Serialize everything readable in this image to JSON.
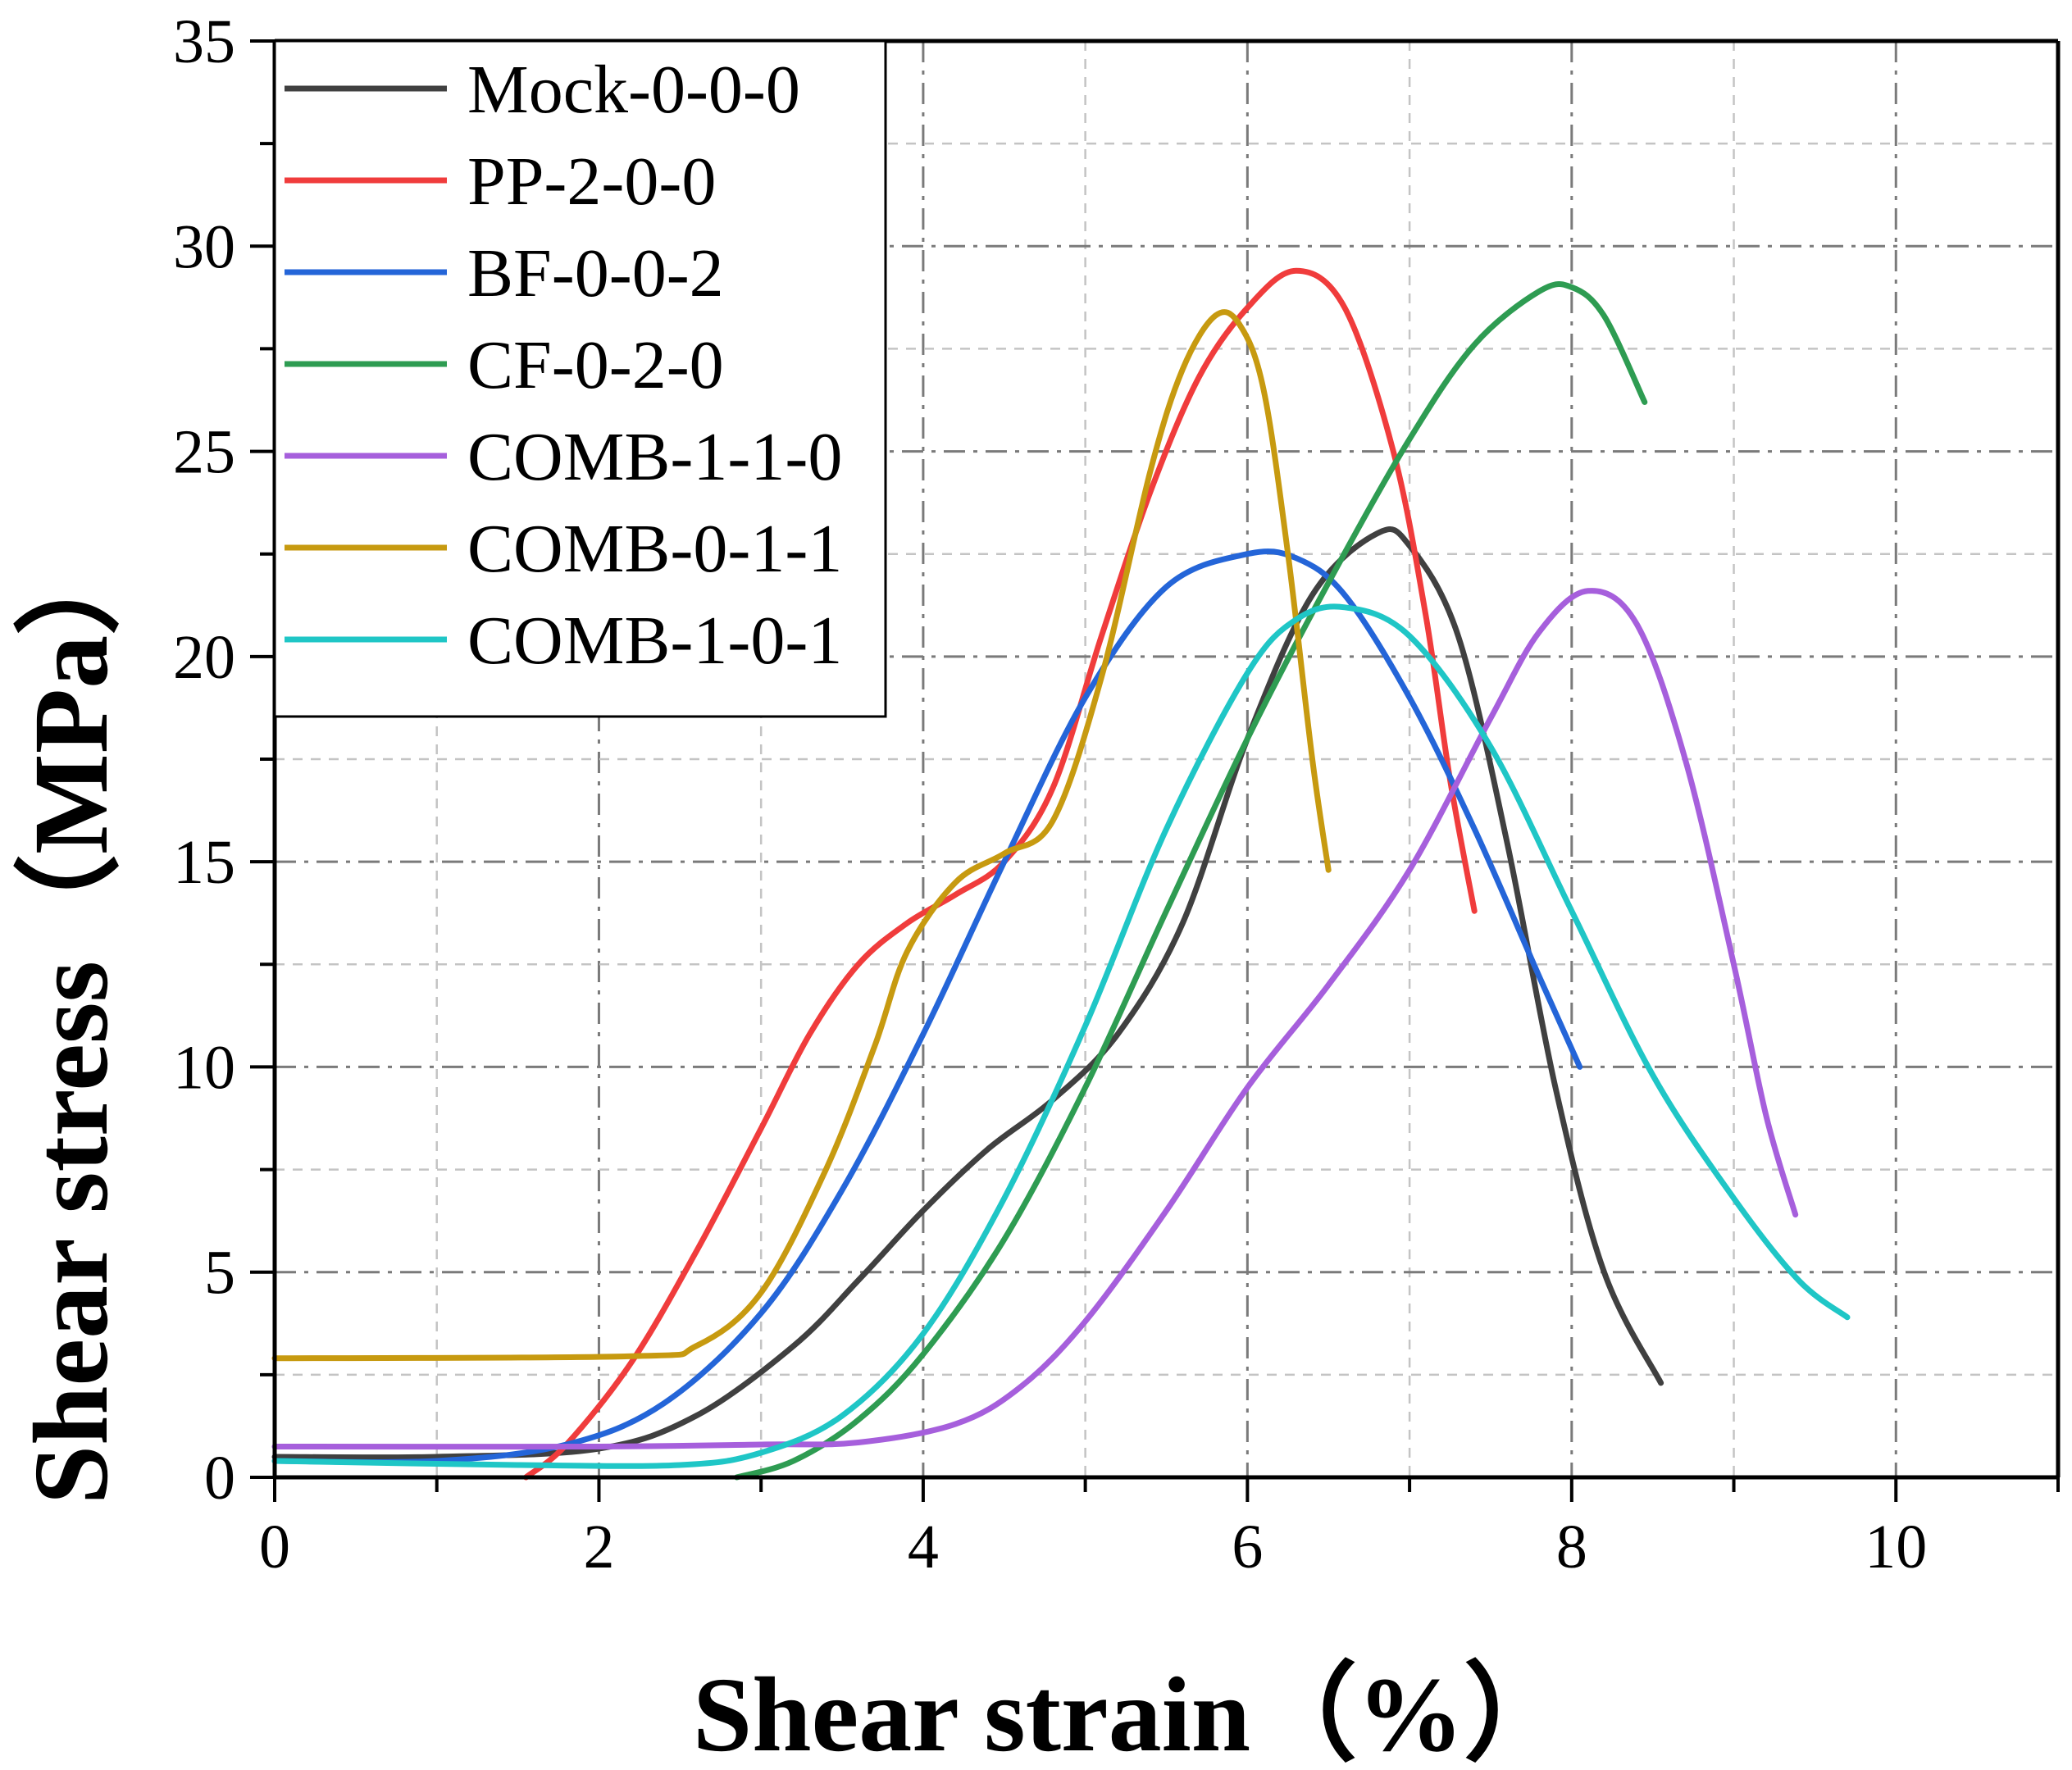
{
  "chart_data": {
    "type": "line",
    "title": "",
    "xlabel": "Shear strain（%）",
    "ylabel": "Shear stress（MPa）",
    "xlim": [
      0,
      11
    ],
    "ylim": [
      0,
      35
    ],
    "xticks": [
      0,
      2,
      4,
      6,
      8,
      10
    ],
    "yticks": [
      0,
      5,
      10,
      15,
      20,
      25,
      30,
      35
    ],
    "grid": true,
    "legend_position": "top-left",
    "series": [
      {
        "name": "Mock-0-0-0",
        "color": "#404040",
        "x": [
          0,
          1.0,
          2.0,
          2.6,
          3.2,
          3.6,
          4.0,
          4.4,
          4.8,
          5.2,
          5.6,
          6.0,
          6.4,
          6.8,
          7.0,
          7.3,
          7.6,
          7.9,
          8.2,
          8.55
        ],
        "y": [
          0.5,
          0.5,
          0.7,
          1.5,
          3.2,
          4.8,
          6.5,
          8.0,
          9.2,
          10.8,
          13.5,
          18.0,
          21.5,
          23.0,
          22.7,
          20.5,
          15.5,
          9.5,
          5.0,
          2.3
        ]
      },
      {
        "name": "PP-2-0-0",
        "color": "#f03c3c",
        "x": [
          1.55,
          1.8,
          2.2,
          2.6,
          3.0,
          3.3,
          3.6,
          3.9,
          4.2,
          4.5,
          4.8,
          5.1,
          5.4,
          5.7,
          6.0,
          6.3,
          6.6,
          6.9,
          7.1,
          7.25,
          7.4
        ],
        "y": [
          0,
          0.8,
          2.8,
          5.5,
          8.5,
          10.8,
          12.5,
          13.5,
          14.2,
          15.0,
          16.8,
          20.5,
          24.0,
          26.8,
          28.5,
          29.4,
          28.5,
          25.0,
          21.0,
          17.0,
          13.8
        ]
      },
      {
        "name": "BF-0-0-2",
        "color": "#2465d8",
        "x": [
          0,
          1.0,
          1.8,
          2.4,
          3.0,
          3.5,
          4.0,
          4.5,
          5.0,
          5.5,
          6.0,
          6.3,
          6.6,
          7.0,
          7.4,
          7.8,
          8.05
        ],
        "y": [
          0.4,
          0.4,
          0.8,
          1.8,
          4.0,
          7.0,
          10.8,
          15.0,
          19.0,
          21.7,
          22.5,
          22.4,
          21.5,
          19.0,
          15.8,
          12.2,
          10.0
        ]
      },
      {
        "name": "CF-0-2-0",
        "color": "#2e9c52",
        "x": [
          2.85,
          3.2,
          3.6,
          4.0,
          4.5,
          5.0,
          5.5,
          6.0,
          6.5,
          7.0,
          7.4,
          7.8,
          8.0,
          8.2,
          8.45
        ],
        "y": [
          0,
          0.4,
          1.4,
          3.0,
          5.8,
          9.5,
          13.8,
          18.0,
          21.8,
          25.3,
          27.6,
          28.9,
          29.0,
          28.3,
          26.2
        ]
      },
      {
        "name": "COMB-1-1-0",
        "color": "#a65fdc",
        "x": [
          0,
          2.0,
          3.0,
          3.6,
          4.2,
          4.6,
          5.0,
          5.5,
          6.0,
          6.5,
          7.0,
          7.5,
          7.8,
          8.1,
          8.4,
          8.7,
          9.0,
          9.2,
          9.38
        ],
        "y": [
          0.75,
          0.75,
          0.8,
          0.85,
          1.3,
          2.2,
          3.8,
          6.5,
          9.5,
          12.0,
          14.8,
          18.5,
          20.6,
          21.6,
          20.8,
          17.5,
          12.5,
          8.8,
          6.4
        ]
      },
      {
        "name": "COMB-0-1-1",
        "color": "#c79a10",
        "x": [
          0,
          2.2,
          2.6,
          3.0,
          3.4,
          3.7,
          3.9,
          4.2,
          4.5,
          4.8,
          5.1,
          5.4,
          5.6,
          5.8,
          5.95,
          6.1,
          6.25,
          6.4,
          6.5
        ],
        "y": [
          2.9,
          2.95,
          3.2,
          4.5,
          7.5,
          10.5,
          12.8,
          14.5,
          15.2,
          16.0,
          19.5,
          24.5,
          27.0,
          28.3,
          28.1,
          26.5,
          22.5,
          17.5,
          14.8
        ]
      },
      {
        "name": "COMB-1-0-1",
        "color": "#1fc6c6",
        "x": [
          0,
          1.5,
          2.5,
          3.0,
          3.5,
          4.0,
          4.5,
          5.0,
          5.5,
          6.0,
          6.3,
          6.6,
          7.0,
          7.5,
          8.0,
          8.5,
          9.0,
          9.4,
          9.7
        ],
        "y": [
          0.4,
          0.3,
          0.3,
          0.6,
          1.5,
          3.5,
          6.8,
          11.0,
          15.8,
          19.6,
          20.9,
          21.2,
          20.5,
          17.8,
          13.8,
          9.8,
          6.8,
          4.8,
          3.9
        ]
      }
    ]
  }
}
